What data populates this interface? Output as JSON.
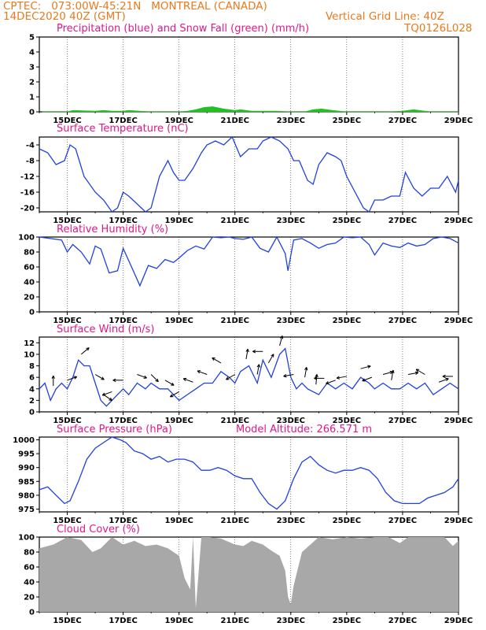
{
  "header": {
    "line1": "CPTEC:   073:00W-45:21N   MONTREAL (CANADA)",
    "line2": "14DEC2020 40Z (GMT)",
    "grid_note": "Vertical Grid Line: 40Z",
    "code": "TQ0126L028"
  },
  "colors": {
    "header": "#e87a1e",
    "title": "#e0188a",
    "line": "#2040e0",
    "snow": "#22c022",
    "cloud": "#a8a8a8",
    "arrow": "#000000"
  },
  "x_tick_labels": [
    "15DEC",
    "17DEC",
    "19DEC",
    "21DEC",
    "23DEC",
    "25DEC",
    "27DEC",
    "29DEC"
  ],
  "chart_data": [
    {
      "type": "area",
      "title": "Precipitation (blue) and Snow Fall (green) (mm/h)",
      "ylim": [
        0,
        5
      ],
      "yticks": [
        "5",
        "4",
        "3",
        "2",
        "1",
        "0"
      ],
      "series": [
        {
          "name": "Snow Fall",
          "x": [
            14.1,
            15.0,
            15.2,
            16.0,
            16.3,
            16.6,
            17.0,
            17.2,
            17.6,
            18.0,
            19.0,
            19.3,
            19.6,
            19.9,
            20.2,
            20.6,
            21.0,
            21.2,
            21.6,
            22.0,
            22.5,
            23.0,
            23.5,
            23.8,
            24.1,
            24.5,
            25.0,
            26.0,
            26.5,
            27.0,
            27.4,
            28.0,
            29.0
          ],
          "values": [
            0,
            0,
            0.1,
            0.05,
            0.1,
            0.05,
            0.05,
            0.1,
            0.05,
            0,
            0,
            0.05,
            0.15,
            0.3,
            0.35,
            0.2,
            0.1,
            0.15,
            0.05,
            0.05,
            0.05,
            0,
            0,
            0.15,
            0.2,
            0.1,
            0,
            0,
            0,
            0.05,
            0.15,
            0,
            0
          ]
        }
      ]
    },
    {
      "type": "line",
      "title": "Surface Temperature (nC)",
      "ylim": [
        -21,
        -2
      ],
      "yticks": [
        "-4",
        "-8",
        "-12",
        "-16",
        "-20"
      ],
      "series": [
        {
          "name": "Surface Temperature",
          "x": [
            14.0,
            14.3,
            14.6,
            14.9,
            15.1,
            15.3,
            15.6,
            16.0,
            16.3,
            16.6,
            16.8,
            17.0,
            17.2,
            17.5,
            17.8,
            18.0,
            18.3,
            18.6,
            18.8,
            19.0,
            19.2,
            19.5,
            19.8,
            20.0,
            20.3,
            20.6,
            20.9,
            21.2,
            21.5,
            21.8,
            22.0,
            22.3,
            22.6,
            22.9,
            23.1,
            23.3,
            23.6,
            23.8,
            24.0,
            24.3,
            24.6,
            24.8,
            25.0,
            25.3,
            25.6,
            25.8,
            26.0,
            26.3,
            26.6,
            26.9,
            27.1,
            27.4,
            27.7,
            28.0,
            28.3,
            28.6,
            28.9,
            29.0
          ],
          "values": [
            -5,
            -6,
            -9,
            -8,
            -4,
            -5,
            -12,
            -16,
            -18,
            -21,
            -20,
            -16,
            -17,
            -19,
            -21,
            -20,
            -12,
            -8,
            -11,
            -13,
            -13,
            -10,
            -6,
            -4,
            -3,
            -4,
            -2,
            -7,
            -5,
            -5,
            -3,
            -2,
            -3,
            -5,
            -8,
            -8,
            -13,
            -14,
            -9,
            -6,
            -7,
            -8,
            -12,
            -16,
            -20,
            -21,
            -18,
            -18,
            -17,
            -17,
            -11,
            -15,
            -17,
            -15,
            -15,
            -12,
            -16,
            -13
          ]
        }
      ]
    },
    {
      "type": "line",
      "title": "Relative Humidity (%)",
      "ylim": [
        0,
        100
      ],
      "yticks": [
        "100",
        "80",
        "60",
        "40",
        "20",
        "0"
      ],
      "series": [
        {
          "name": "Relative Humidity",
          "x": [
            14.0,
            14.4,
            14.8,
            15.0,
            15.2,
            15.5,
            15.8,
            16.0,
            16.2,
            16.5,
            16.8,
            17.0,
            17.3,
            17.6,
            17.9,
            18.2,
            18.5,
            18.8,
            19.0,
            19.3,
            19.6,
            19.9,
            20.2,
            20.5,
            20.8,
            21.0,
            21.3,
            21.6,
            21.9,
            22.2,
            22.5,
            22.8,
            22.9,
            23.1,
            23.4,
            23.7,
            24.0,
            24.3,
            24.6,
            24.9,
            25.2,
            25.5,
            25.8,
            26.0,
            26.3,
            26.6,
            26.9,
            27.2,
            27.5,
            27.8,
            28.1,
            28.4,
            28.7,
            29.0
          ],
          "values": [
            100,
            98,
            96,
            80,
            90,
            80,
            64,
            88,
            84,
            52,
            55,
            85,
            60,
            35,
            62,
            58,
            70,
            66,
            72,
            82,
            88,
            84,
            100,
            99,
            100,
            98,
            97,
            100,
            85,
            80,
            100,
            78,
            55,
            96,
            98,
            92,
            85,
            90,
            92,
            100,
            99,
            100,
            90,
            76,
            92,
            88,
            86,
            92,
            88,
            90,
            98,
            100,
            98,
            92
          ]
        }
      ]
    },
    {
      "type": "line",
      "title": "Surface Wind (m/s)",
      "ylim": [
        0,
        13
      ],
      "yticks": [
        "12",
        "10",
        "8",
        "6",
        "4",
        "2",
        "0"
      ],
      "series": [
        {
          "name": "Surface Wind",
          "x": [
            14.0,
            14.2,
            14.4,
            14.6,
            14.8,
            15.0,
            15.2,
            15.4,
            15.6,
            15.8,
            16.0,
            16.2,
            16.4,
            16.6,
            16.8,
            17.0,
            17.2,
            17.5,
            17.8,
            18.0,
            18.3,
            18.6,
            18.8,
            19.0,
            19.3,
            19.6,
            19.9,
            20.2,
            20.5,
            20.8,
            21.0,
            21.2,
            21.5,
            21.8,
            22.0,
            22.3,
            22.6,
            22.8,
            23.0,
            23.2,
            23.4,
            23.6,
            24.0,
            24.3,
            24.6,
            24.9,
            25.2,
            25.5,
            25.8,
            26.0,
            26.3,
            26.6,
            26.9,
            27.2,
            27.5,
            27.8,
            28.1,
            28.4,
            28.7,
            29.0
          ],
          "values": [
            4,
            5,
            2,
            4,
            5,
            4,
            6,
            9,
            8,
            8,
            5,
            2,
            1,
            2,
            3,
            4,
            3,
            5,
            4,
            5,
            4,
            4,
            3,
            2,
            3,
            4,
            5,
            5,
            7,
            6,
            5,
            7,
            8,
            5,
            9,
            6,
            10,
            11,
            6,
            4,
            5,
            4,
            3,
            5,
            4,
            5,
            4,
            6,
            5,
            4,
            5,
            4,
            4,
            5,
            4,
            5,
            3,
            4,
            5,
            4
          ]
        }
      ],
      "arrow_times": [
        14.5,
        15.0,
        15.5,
        16.0,
        16.3,
        16.6,
        17.0,
        17.5,
        18.0,
        18.5,
        19.0,
        19.5,
        20.0,
        20.5,
        21.0,
        21.4,
        21.8,
        22.0,
        22.2,
        22.6,
        23.1,
        23.5,
        23.9,
        24.2,
        24.6,
        25.0,
        25.5,
        25.9,
        26.3,
        26.6,
        27.2,
        27.8,
        28.3,
        28.8
      ],
      "arrow_angles_deg": [
        90,
        20,
        40,
        -30,
        -35,
        200,
        180,
        -20,
        -45,
        -30,
        210,
        160,
        160,
        150,
        210,
        80,
        80,
        180,
        60,
        75,
        190,
        80,
        85,
        180,
        200,
        190,
        15,
        200,
        15,
        80,
        10,
        150,
        20,
        180
      ]
    },
    {
      "type": "line",
      "title": "Surface Pressure (hPa)",
      "subtitle": "Model Altitude: 266.571 m",
      "ylim": [
        974,
        1001
      ],
      "yticks": [
        "1000",
        "995",
        "990",
        "985",
        "980",
        "975"
      ],
      "series": [
        {
          "name": "Surface Pressure",
          "x": [
            14.0,
            14.3,
            14.6,
            14.9,
            15.1,
            15.4,
            15.7,
            16.0,
            16.3,
            16.6,
            16.9,
            17.1,
            17.4,
            17.7,
            18.0,
            18.3,
            18.6,
            18.9,
            19.2,
            19.5,
            19.8,
            20.1,
            20.4,
            20.7,
            21.0,
            21.3,
            21.6,
            21.9,
            22.2,
            22.5,
            22.8,
            23.1,
            23.4,
            23.7,
            24.0,
            24.3,
            24.6,
            24.9,
            25.2,
            25.5,
            25.8,
            26.1,
            26.4,
            26.7,
            27.0,
            27.3,
            27.6,
            27.9,
            28.2,
            28.5,
            28.8,
            29.0
          ],
          "values": [
            982,
            983,
            980,
            977,
            978,
            985,
            993,
            997,
            999,
            1001,
            1000,
            999,
            996,
            995,
            993,
            994,
            992,
            993,
            993,
            992,
            989,
            989,
            990,
            989,
            987,
            986,
            986,
            981,
            977,
            975,
            978,
            986,
            992,
            994,
            991,
            989,
            988,
            989,
            989,
            990,
            989,
            986,
            981,
            978,
            977,
            977,
            977,
            979,
            980,
            981,
            983,
            986
          ]
        }
      ]
    },
    {
      "type": "area",
      "title": "Cloud Cover (%)",
      "ylim": [
        0,
        100
      ],
      "yticks": [
        "100",
        "80",
        "60",
        "40",
        "20",
        "0"
      ],
      "series": [
        {
          "name": "Cloud Cover",
          "x": [
            14.0,
            14.5,
            15.0,
            15.5,
            15.9,
            16.2,
            16.6,
            17.0,
            17.4,
            17.8,
            18.2,
            18.6,
            19.0,
            19.2,
            19.4,
            19.5,
            19.6,
            19.8,
            20.1,
            20.5,
            21.0,
            21.3,
            21.6,
            22.0,
            22.3,
            22.6,
            22.8,
            22.9,
            23.0,
            23.1,
            23.4,
            24.0,
            24.5,
            25.0,
            25.5,
            26.0,
            26.5,
            26.9,
            27.2,
            27.6,
            28.0,
            28.5,
            28.8,
            29.0
          ],
          "values": [
            85,
            90,
            100,
            96,
            80,
            85,
            100,
            90,
            95,
            88,
            90,
            85,
            75,
            45,
            30,
            100,
            5,
            100,
            100,
            98,
            90,
            88,
            95,
            90,
            82,
            75,
            55,
            20,
            10,
            35,
            80,
            100,
            97,
            100,
            98,
            100,
            100,
            92,
            100,
            100,
            100,
            100,
            88,
            95
          ]
        }
      ]
    }
  ]
}
